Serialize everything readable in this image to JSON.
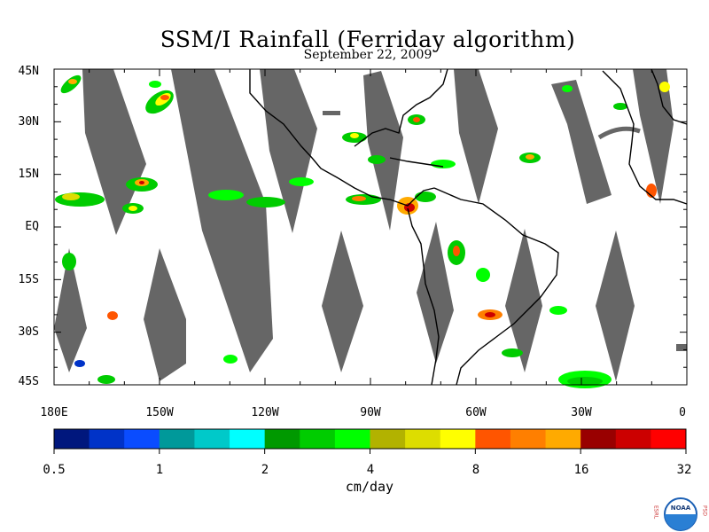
{
  "header": {
    "title": "SSM/I Rainfall (Ferriday algorithm)",
    "date": "September 22, 2009"
  },
  "map": {
    "lat_labels": [
      "45N",
      "30N",
      "15N",
      "EQ",
      "15S",
      "30S",
      "45S"
    ],
    "lon_labels": [
      "180E",
      "150W",
      "120W",
      "90W",
      "60W",
      "30W",
      "0"
    ],
    "missing_swath_color": "#666666",
    "coast_color": "#000000"
  },
  "colorbar": {
    "tick_labels": [
      "0.5",
      "1",
      "2",
      "4",
      "8",
      "16",
      "32"
    ],
    "units": "cm/day",
    "colors": [
      "#00177d",
      "#0033c8",
      "#0a4cff",
      "#00999a",
      "#00c9c9",
      "#00ffff",
      "#009900",
      "#00cc00",
      "#00ff00",
      "#b2b200",
      "#dddd00",
      "#ffff00",
      "#ff5500",
      "#ff7f00",
      "#ffaa00",
      "#990000",
      "#cc0000",
      "#ff0000"
    ]
  },
  "logo": {
    "text": "NOAA",
    "left_letters": "ESRL",
    "right_letters": "PSD"
  }
}
